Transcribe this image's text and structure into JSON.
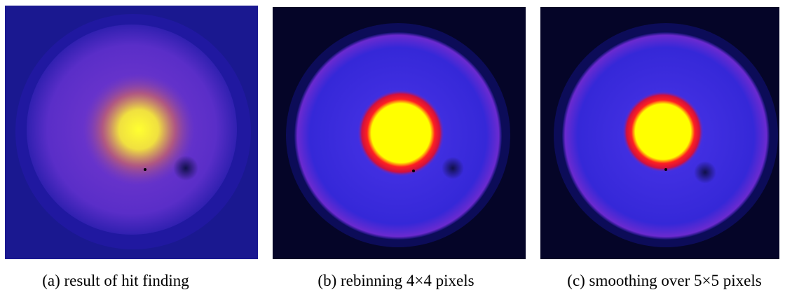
{
  "panels": [
    {
      "caption": "(a) result of hit finding"
    },
    {
      "caption": "(b) rebinning 4×4 pixels"
    },
    {
      "caption": "(c) smoothing over 5×5 pixels"
    }
  ]
}
